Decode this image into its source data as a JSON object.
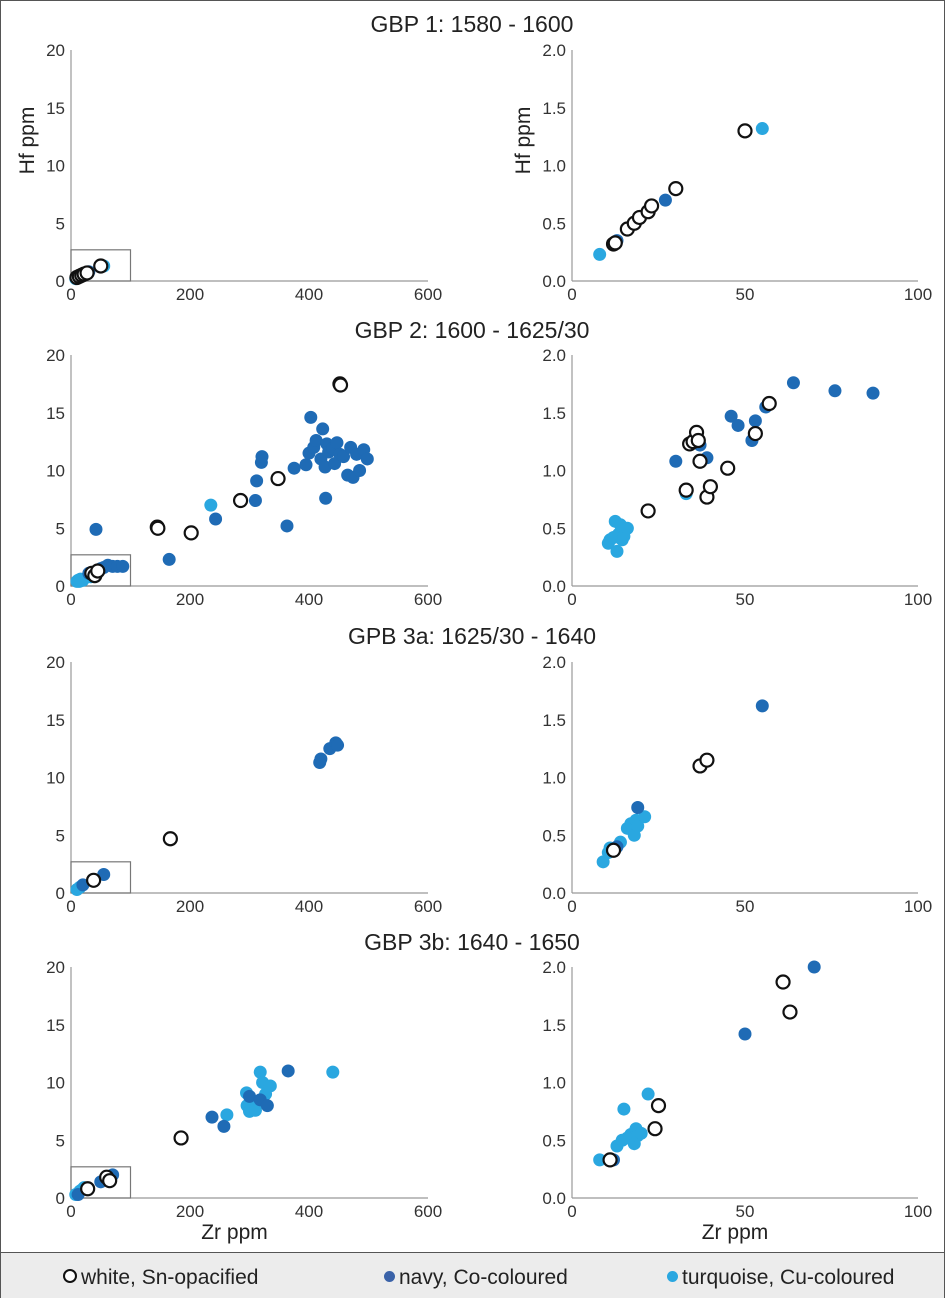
{
  "colors": {
    "white_edge": "#111111",
    "navy": "#1f6bb5",
    "turquoise": "#2aa7e0",
    "axis": "#999999"
  },
  "legend": {
    "white": "white, Sn-opacified",
    "navy": "navy, Co-coloured",
    "turquoise": "turquoise, Cu-coloured"
  },
  "chart_data": [
    {
      "type": "scatter",
      "panel": "GBP 1 full",
      "title": "GBP 1:  1580 - 1600",
      "xlabel": "",
      "ylabel": "Hf ppm",
      "xlim": [
        0,
        600
      ],
      "ylim": [
        0,
        20
      ],
      "xticks": [
        "0",
        "200",
        "400",
        "600"
      ],
      "yticks": [
        "0",
        "5",
        "10",
        "15",
        "20"
      ],
      "inset": [
        0,
        0,
        100,
        2.7
      ],
      "series": [
        {
          "category": "white",
          "points": [
            [
              10,
              0.3
            ],
            [
              14,
              0.4
            ],
            [
              18,
              0.5
            ],
            [
              22,
              0.6
            ],
            [
              27,
              0.7
            ],
            [
              50,
              1.3
            ]
          ]
        },
        {
          "category": "navy",
          "points": [
            [
              25,
              0.7
            ],
            [
              30,
              0.8
            ]
          ]
        },
        {
          "category": "turquoise",
          "points": [
            [
              8,
              0.2
            ],
            [
              55,
              1.3
            ]
          ]
        }
      ]
    },
    {
      "type": "scatter",
      "panel": "GBP 1 zoom",
      "title": "",
      "xlabel": "",
      "ylabel": "Hf ppm",
      "xlim": [
        0,
        100
      ],
      "ylim": [
        0,
        2
      ],
      "xticks": [
        "0",
        "50",
        "100"
      ],
      "yticks": [
        "0.0",
        "0.5",
        "1.0",
        "1.5",
        "2.0"
      ],
      "series": [
        {
          "category": "white",
          "points": [
            [
              12,
              0.32
            ],
            [
              12.5,
              0.33
            ],
            [
              16,
              0.45
            ],
            [
              18,
              0.5
            ],
            [
              19.5,
              0.55
            ],
            [
              22,
              0.6
            ],
            [
              23,
              0.65
            ],
            [
              30,
              0.8
            ],
            [
              50,
              1.3
            ]
          ]
        },
        {
          "category": "navy",
          "points": [
            [
              13,
              0.35
            ],
            [
              27,
              0.7
            ]
          ]
        },
        {
          "category": "turquoise",
          "points": [
            [
              8,
              0.23
            ],
            [
              55,
              1.32
            ]
          ]
        }
      ]
    },
    {
      "type": "scatter",
      "panel": "GBP 2 full",
      "title": "GBP 2:  1600 - 1625/30",
      "xlabel": "",
      "ylabel": "",
      "xlim": [
        0,
        600
      ],
      "ylim": [
        0,
        20
      ],
      "xticks": [
        "0",
        "200",
        "400",
        "600"
      ],
      "yticks": [
        "0",
        "5",
        "10",
        "15",
        "20"
      ],
      "inset": [
        0,
        0,
        100,
        2.7
      ],
      "series": [
        {
          "category": "white",
          "points": [
            [
              145,
              5.1
            ],
            [
              146,
              5.0
            ],
            [
              202,
              4.6
            ],
            [
              285,
              7.4
            ],
            [
              348,
              9.3
            ],
            [
              452,
              17.5
            ],
            [
              453,
              17.4
            ],
            [
              35,
              1.1
            ],
            [
              40,
              0.9
            ],
            [
              45,
              1.3
            ]
          ]
        },
        {
          "category": "navy",
          "points": [
            [
              42,
              4.9
            ],
            [
              165,
              2.3
            ],
            [
              243,
              5.8
            ],
            [
              310,
              7.4
            ],
            [
              312,
              9.1
            ],
            [
              320,
              10.7
            ],
            [
              321,
              11.2
            ],
            [
              363,
              5.2
            ],
            [
              375,
              10.2
            ],
            [
              395,
              10.5
            ],
            [
              400,
              11.5
            ],
            [
              403,
              14.6
            ],
            [
              408,
              12.0
            ],
            [
              412,
              12.6
            ],
            [
              420,
              11.0
            ],
            [
              423,
              13.6
            ],
            [
              427,
              10.3
            ],
            [
              428,
              7.6
            ],
            [
              430,
              12.3
            ],
            [
              433,
              11.6
            ],
            [
              440,
              11.9
            ],
            [
              443,
              10.6
            ],
            [
              447,
              12.4
            ],
            [
              452,
              11.4
            ],
            [
              458,
              11.2
            ],
            [
              465,
              9.6
            ],
            [
              470,
              12.0
            ],
            [
              474,
              9.4
            ],
            [
              480,
              11.4
            ],
            [
              485,
              10.0
            ],
            [
              492,
              11.8
            ],
            [
              498,
              11.0
            ],
            [
              30,
              1.1
            ],
            [
              38,
              1.2
            ],
            [
              45,
              1.3
            ],
            [
              50,
              1.5
            ],
            [
              55,
              1.6
            ],
            [
              62,
              1.8
            ],
            [
              70,
              1.7
            ],
            [
              78,
              1.7
            ],
            [
              87,
              1.7
            ]
          ]
        },
        {
          "category": "turquoise",
          "points": [
            [
              235,
              7.0
            ],
            [
              10,
              0.4
            ],
            [
              12,
              0.5
            ],
            [
              14,
              0.4
            ],
            [
              16,
              0.6
            ],
            [
              20,
              0.5
            ],
            [
              33,
              0.8
            ]
          ]
        }
      ]
    },
    {
      "type": "scatter",
      "panel": "GBP 2 zoom",
      "title": "",
      "xlabel": "",
      "ylabel": "",
      "xlim": [
        0,
        100
      ],
      "ylim": [
        0,
        2
      ],
      "xticks": [
        "0",
        "50",
        "100"
      ],
      "yticks": [
        "0.0",
        "0.5",
        "1.0",
        "1.5",
        "2.0"
      ],
      "series": [
        {
          "category": "white",
          "points": [
            [
              22,
              0.65
            ],
            [
              33,
              0.83
            ],
            [
              34,
              1.23
            ],
            [
              35,
              1.25
            ],
            [
              36,
              1.33
            ],
            [
              36.5,
              1.26
            ],
            [
              37,
              1.08
            ],
            [
              39,
              0.77
            ],
            [
              40,
              0.86
            ],
            [
              45,
              1.02
            ],
            [
              53,
              1.32
            ],
            [
              57,
              1.58
            ]
          ]
        },
        {
          "category": "navy",
          "points": [
            [
              30,
              1.08
            ],
            [
              37,
              1.22
            ],
            [
              39,
              1.11
            ],
            [
              46,
              1.47
            ],
            [
              48,
              1.39
            ],
            [
              52,
              1.26
            ],
            [
              53,
              1.43
            ],
            [
              56,
              1.55
            ],
            [
              64,
              1.76
            ],
            [
              76,
              1.69
            ],
            [
              87,
              1.67
            ]
          ]
        },
        {
          "category": "turquoise",
          "points": [
            [
              10.5,
              0.37
            ],
            [
              11,
              0.4
            ],
            [
              12,
              0.42
            ],
            [
              12.5,
              0.56
            ],
            [
              13,
              0.3
            ],
            [
              13.5,
              0.45
            ],
            [
              14,
              0.53
            ],
            [
              14.5,
              0.4
            ],
            [
              15,
              0.43
            ],
            [
              16,
              0.5
            ],
            [
              33,
              0.8
            ]
          ]
        }
      ]
    },
    {
      "type": "scatter",
      "panel": "GPB 3a full",
      "title": "GPB 3a: 1625/30 - 1640",
      "xlabel": "",
      "ylabel": "",
      "xlim": [
        0,
        600
      ],
      "ylim": [
        0,
        20
      ],
      "xticks": [
        "0",
        "200",
        "400",
        "600"
      ],
      "yticks": [
        "0",
        "5",
        "10",
        "15",
        "20"
      ],
      "inset": [
        0,
        0,
        100,
        2.7
      ],
      "series": [
        {
          "category": "white",
          "points": [
            [
              167,
              4.7
            ],
            [
              38,
              1.1
            ]
          ]
        },
        {
          "category": "navy",
          "points": [
            [
              418,
              11.3
            ],
            [
              420,
              11.6
            ],
            [
              435,
              12.5
            ],
            [
              445,
              13.0
            ],
            [
              448,
              12.8
            ],
            [
              20,
              0.7
            ],
            [
              55,
              1.6
            ]
          ]
        },
        {
          "category": "turquoise",
          "points": [
            [
              10,
              0.3
            ],
            [
              15,
              0.5
            ]
          ]
        }
      ]
    },
    {
      "type": "scatter",
      "panel": "GPB 3a zoom",
      "title": "",
      "xlabel": "",
      "ylabel": "",
      "xlim": [
        0,
        100
      ],
      "ylim": [
        0,
        2
      ],
      "xticks": [
        "0",
        "50",
        "100"
      ],
      "yticks": [
        "0.0",
        "0.5",
        "1.0",
        "1.5",
        "2.0"
      ],
      "series": [
        {
          "category": "white",
          "points": [
            [
              12,
              0.37
            ],
            [
              37,
              1.1
            ],
            [
              39,
              1.15
            ]
          ]
        },
        {
          "category": "navy",
          "points": [
            [
              13,
              0.4
            ],
            [
              19,
              0.74
            ],
            [
              55,
              1.62
            ]
          ]
        },
        {
          "category": "turquoise",
          "points": [
            [
              9,
              0.27
            ],
            [
              10.5,
              0.35
            ],
            [
              11,
              0.39
            ],
            [
              14,
              0.44
            ],
            [
              16,
              0.56
            ],
            [
              17,
              0.6
            ],
            [
              18,
              0.5
            ],
            [
              18.5,
              0.63
            ],
            [
              19,
              0.58
            ],
            [
              21,
              0.66
            ]
          ]
        }
      ]
    },
    {
      "type": "scatter",
      "panel": "GBP 3b full",
      "title": "GBP 3b:  1640 - 1650",
      "xlabel": "Zr ppm",
      "ylabel": "",
      "xlim": [
        0,
        600
      ],
      "ylim": [
        0,
        20
      ],
      "xticks": [
        "0",
        "200",
        "400",
        "600"
      ],
      "yticks": [
        "0",
        "5",
        "10",
        "15",
        "20"
      ],
      "inset": [
        0,
        0,
        100,
        2.7
      ],
      "series": [
        {
          "category": "white",
          "points": [
            [
              185,
              5.2
            ],
            [
              28,
              0.8
            ],
            [
              60,
              1.8
            ],
            [
              65,
              1.5
            ]
          ]
        },
        {
          "category": "navy",
          "points": [
            [
              237,
              7.0
            ],
            [
              257,
              6.2
            ],
            [
              300,
              8.8
            ],
            [
              318,
              8.5
            ],
            [
              330,
              8.0
            ],
            [
              365,
              11.0
            ],
            [
              12,
              0.3
            ],
            [
              50,
              1.4
            ],
            [
              70,
              2.0
            ]
          ]
        },
        {
          "category": "turquoise",
          "points": [
            [
              262,
              7.2
            ],
            [
              295,
              9.1
            ],
            [
              296,
              8.0
            ],
            [
              300,
              7.5
            ],
            [
              310,
              7.6
            ],
            [
              312,
              8.3
            ],
            [
              318,
              10.9
            ],
            [
              322,
              10.0
            ],
            [
              327,
              9.0
            ],
            [
              335,
              9.7
            ],
            [
              440,
              10.9
            ],
            [
              8,
              0.3
            ],
            [
              15,
              0.6
            ],
            [
              18,
              0.7
            ],
            [
              22,
              0.9
            ]
          ]
        }
      ]
    },
    {
      "type": "scatter",
      "panel": "GBP 3b zoom",
      "title": "",
      "xlabel": "Zr ppm",
      "ylabel": "",
      "xlim": [
        0,
        100
      ],
      "ylim": [
        0,
        2
      ],
      "xticks": [
        "0",
        "50",
        "100"
      ],
      "yticks": [
        "0.0",
        "0.5",
        "1.0",
        "1.5",
        "2.0"
      ],
      "series": [
        {
          "category": "white",
          "points": [
            [
              11,
              0.33
            ],
            [
              24,
              0.6
            ],
            [
              25,
              0.8
            ],
            [
              61,
              1.87
            ],
            [
              63,
              1.61
            ]
          ]
        },
        {
          "category": "navy",
          "points": [
            [
              12,
              0.33
            ],
            [
              50,
              1.42
            ],
            [
              70,
              2.0
            ]
          ]
        },
        {
          "category": "turquoise",
          "points": [
            [
              8,
              0.33
            ],
            [
              13,
              0.45
            ],
            [
              14.5,
              0.5
            ],
            [
              15,
              0.77
            ],
            [
              16,
              0.52
            ],
            [
              17,
              0.55
            ],
            [
              18,
              0.47
            ],
            [
              18.5,
              0.6
            ],
            [
              19,
              0.54
            ],
            [
              20,
              0.56
            ],
            [
              22,
              0.9
            ]
          ]
        }
      ]
    }
  ]
}
